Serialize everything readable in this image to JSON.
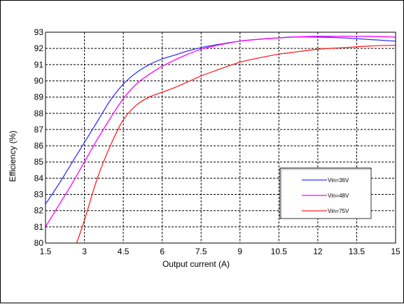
{
  "chart_data": {
    "type": "line",
    "title": "",
    "xlabel": "Output current (A)",
    "ylabel": "Efficiency (%)",
    "xlim": [
      1.5,
      15
    ],
    "ylim": [
      80,
      93
    ],
    "x_ticks": [
      "1.5",
      "3",
      "4.5",
      "6",
      "7.5",
      "9",
      "10.5",
      "12",
      "13.5",
      "15"
    ],
    "y_ticks": [
      "93",
      "92",
      "91",
      "90",
      "89",
      "88",
      "87",
      "86",
      "85",
      "84",
      "83",
      "82",
      "81",
      "80"
    ],
    "grid": true,
    "legend_position": "bottom-right",
    "series": [
      {
        "name": "Vin=36V",
        "color": "#3333ff",
        "points": [
          [
            1.5,
            82.4
          ],
          [
            2.0,
            83.6
          ],
          [
            2.5,
            84.9
          ],
          [
            3.0,
            86.2
          ],
          [
            3.5,
            87.5
          ],
          [
            4.0,
            88.8
          ],
          [
            4.5,
            89.8
          ],
          [
            5.0,
            90.5
          ],
          [
            5.5,
            91.0
          ],
          [
            6.0,
            91.35
          ],
          [
            6.5,
            91.6
          ],
          [
            7.0,
            91.85
          ],
          [
            7.5,
            92.05
          ],
          [
            8.0,
            92.2
          ],
          [
            9.0,
            92.45
          ],
          [
            10.0,
            92.6
          ],
          [
            10.5,
            92.65
          ],
          [
            11.0,
            92.7
          ],
          [
            12.0,
            92.7
          ],
          [
            13.0,
            92.65
          ],
          [
            14.0,
            92.55
          ],
          [
            15.0,
            92.45
          ]
        ]
      },
      {
        "name": "Vin=48V",
        "color": "#ff00ff",
        "points": [
          [
            1.5,
            81.0
          ],
          [
            2.0,
            82.3
          ],
          [
            2.5,
            83.6
          ],
          [
            3.0,
            85.0
          ],
          [
            3.5,
            86.4
          ],
          [
            4.0,
            87.7
          ],
          [
            4.5,
            88.9
          ],
          [
            5.0,
            89.8
          ],
          [
            5.5,
            90.4
          ],
          [
            6.0,
            90.9
          ],
          [
            6.5,
            91.3
          ],
          [
            7.0,
            91.65
          ],
          [
            7.5,
            91.95
          ],
          [
            8.0,
            92.15
          ],
          [
            9.0,
            92.45
          ],
          [
            10.0,
            92.6
          ],
          [
            10.5,
            92.65
          ],
          [
            11.0,
            92.7
          ],
          [
            12.0,
            92.75
          ],
          [
            13.0,
            92.75
          ],
          [
            14.0,
            92.75
          ],
          [
            15.0,
            92.7
          ]
        ]
      },
      {
        "name": "Vin=75V",
        "color": "#ff2222",
        "points": [
          [
            2.7,
            80.0
          ],
          [
            3.0,
            81.4
          ],
          [
            3.5,
            84.0
          ],
          [
            4.0,
            86.0
          ],
          [
            4.5,
            87.6
          ],
          [
            5.0,
            88.5
          ],
          [
            5.5,
            89.0
          ],
          [
            6.0,
            89.3
          ],
          [
            6.5,
            89.6
          ],
          [
            7.0,
            89.95
          ],
          [
            7.5,
            90.3
          ],
          [
            8.0,
            90.6
          ],
          [
            9.0,
            91.15
          ],
          [
            10.0,
            91.5
          ],
          [
            10.5,
            91.65
          ],
          [
            11.0,
            91.75
          ],
          [
            12.0,
            91.95
          ],
          [
            13.0,
            92.05
          ],
          [
            14.0,
            92.15
          ],
          [
            15.0,
            92.2
          ]
        ]
      }
    ]
  }
}
